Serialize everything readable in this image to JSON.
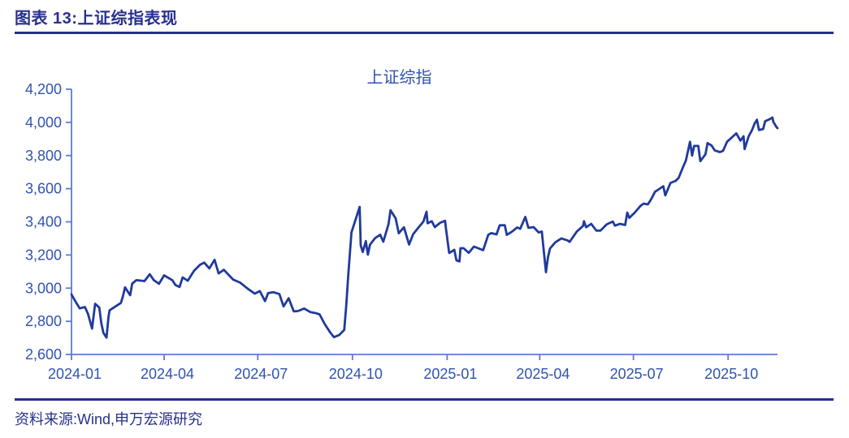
{
  "header": {
    "caption": "图表 13:上证综指表现"
  },
  "footer": {
    "source": "资料来源:Wind,申万宏源研究"
  },
  "chart_data": {
    "type": "line",
    "title": "上证综指",
    "series_name": "上证综指",
    "xlabel": "",
    "ylabel": "",
    "ylim": [
      2600,
      4200
    ],
    "x_range": [
      "2024-01-02",
      "2025-11-18"
    ],
    "grid": false,
    "legend": "none",
    "colors": {
      "heading": "#27308D",
      "line": "#203A9B",
      "axis": "#5B7CD2",
      "tick_label": "#3152B0",
      "title_text": "#3152B0"
    },
    "y_ticks": [
      {
        "value": 4200,
        "label": "4,200"
      },
      {
        "value": 4000,
        "label": "4,000"
      },
      {
        "value": 3800,
        "label": "3,800"
      },
      {
        "value": 3600,
        "label": "3,600"
      },
      {
        "value": 3400,
        "label": "3,400"
      },
      {
        "value": 3200,
        "label": "3,200"
      },
      {
        "value": 3000,
        "label": "3,000"
      },
      {
        "value": 2800,
        "label": "2,800"
      },
      {
        "value": 2600,
        "label": "2,600"
      }
    ],
    "x_ticks": [
      {
        "date": "2024-01-01",
        "label": "2024-01"
      },
      {
        "date": "2024-04-01",
        "label": "2024-04"
      },
      {
        "date": "2024-07-01",
        "label": "2024-07"
      },
      {
        "date": "2024-10-01",
        "label": "2024-10"
      },
      {
        "date": "2025-01-01",
        "label": "2025-01"
      },
      {
        "date": "2025-04-01",
        "label": "2025-04"
      },
      {
        "date": "2025-07-01",
        "label": "2025-07"
      },
      {
        "date": "2025-10-01",
        "label": "2025-10"
      }
    ],
    "points": [
      [
        "2024-01-02",
        2962
      ],
      [
        "2024-01-05",
        2929
      ],
      [
        "2024-01-10",
        2878
      ],
      [
        "2024-01-15",
        2886
      ],
      [
        "2024-01-18",
        2845
      ],
      [
        "2024-01-22",
        2756
      ],
      [
        "2024-01-25",
        2906
      ],
      [
        "2024-01-29",
        2883
      ],
      [
        "2024-01-31",
        2789
      ],
      [
        "2024-02-02",
        2730
      ],
      [
        "2024-02-05",
        2702
      ],
      [
        "2024-02-07",
        2829
      ],
      [
        "2024-02-08",
        2866
      ],
      [
        "2024-02-19",
        2911
      ],
      [
        "2024-02-21",
        2951
      ],
      [
        "2024-02-23",
        3005
      ],
      [
        "2024-02-28",
        2957
      ],
      [
        "2024-03-01",
        3027
      ],
      [
        "2024-03-05",
        3048
      ],
      [
        "2024-03-08",
        3046
      ],
      [
        "2024-03-13",
        3043
      ],
      [
        "2024-03-18",
        3084
      ],
      [
        "2024-03-22",
        3048
      ],
      [
        "2024-03-27",
        3026
      ],
      [
        "2024-04-01",
        3077
      ],
      [
        "2024-04-09",
        3048
      ],
      [
        "2024-04-12",
        3019
      ],
      [
        "2024-04-16",
        3007
      ],
      [
        "2024-04-19",
        3065
      ],
      [
        "2024-04-24",
        3045
      ],
      [
        "2024-04-30",
        3104
      ],
      [
        "2024-05-06",
        3141
      ],
      [
        "2024-05-10",
        3154
      ],
      [
        "2024-05-15",
        3119
      ],
      [
        "2024-05-20",
        3171
      ],
      [
        "2024-05-24",
        3089
      ],
      [
        "2024-05-29",
        3111
      ],
      [
        "2024-06-03",
        3078
      ],
      [
        "2024-06-07",
        3052
      ],
      [
        "2024-06-14",
        3033
      ],
      [
        "2024-06-21",
        2998
      ],
      [
        "2024-06-28",
        2967
      ],
      [
        "2024-07-03",
        2982
      ],
      [
        "2024-07-08",
        2922
      ],
      [
        "2024-07-11",
        2970
      ],
      [
        "2024-07-16",
        2976
      ],
      [
        "2024-07-22",
        2964
      ],
      [
        "2024-07-26",
        2890
      ],
      [
        "2024-07-31",
        2939
      ],
      [
        "2024-08-05",
        2860
      ],
      [
        "2024-08-09",
        2862
      ],
      [
        "2024-08-15",
        2877
      ],
      [
        "2024-08-21",
        2856
      ],
      [
        "2024-08-27",
        2848
      ],
      [
        "2024-08-30",
        2842
      ],
      [
        "2024-09-04",
        2784
      ],
      [
        "2024-09-09",
        2736
      ],
      [
        "2024-09-13",
        2704
      ],
      [
        "2024-09-18",
        2717
      ],
      [
        "2024-09-23",
        2748
      ],
      [
        "2024-09-25",
        2896
      ],
      [
        "2024-09-27",
        3088
      ],
      [
        "2024-09-30",
        3336
      ],
      [
        "2024-10-08",
        3490
      ],
      [
        "2024-10-09",
        3258
      ],
      [
        "2024-10-11",
        3218
      ],
      [
        "2024-10-14",
        3284
      ],
      [
        "2024-10-16",
        3202
      ],
      [
        "2024-10-18",
        3262
      ],
      [
        "2024-10-23",
        3302
      ],
      [
        "2024-10-28",
        3322
      ],
      [
        "2024-10-31",
        3280
      ],
      [
        "2024-11-05",
        3386
      ],
      [
        "2024-11-07",
        3470
      ],
      [
        "2024-11-12",
        3421
      ],
      [
        "2024-11-15",
        3331
      ],
      [
        "2024-11-20",
        3367
      ],
      [
        "2024-11-25",
        3263
      ],
      [
        "2024-11-29",
        3326
      ],
      [
        "2024-12-04",
        3365
      ],
      [
        "2024-12-09",
        3402
      ],
      [
        "2024-12-12",
        3461
      ],
      [
        "2024-12-13",
        3391
      ],
      [
        "2024-12-17",
        3404
      ],
      [
        "2024-12-20",
        3368
      ],
      [
        "2024-12-25",
        3393
      ],
      [
        "2024-12-30",
        3407
      ],
      [
        "2024-12-31",
        3352
      ],
      [
        "2025-01-03",
        3212
      ],
      [
        "2025-01-08",
        3231
      ],
      [
        "2025-01-10",
        3168
      ],
      [
        "2025-01-13",
        3161
      ],
      [
        "2025-01-14",
        3241
      ],
      [
        "2025-01-17",
        3241
      ],
      [
        "2025-01-22",
        3213
      ],
      [
        "2025-01-27",
        3251
      ],
      [
        "2025-02-05",
        3229
      ],
      [
        "2025-02-10",
        3322
      ],
      [
        "2025-02-13",
        3332
      ],
      [
        "2025-02-18",
        3324
      ],
      [
        "2025-02-21",
        3379
      ],
      [
        "2025-02-26",
        3380
      ],
      [
        "2025-02-28",
        3321
      ],
      [
        "2025-03-05",
        3341
      ],
      [
        "2025-03-10",
        3366
      ],
      [
        "2025-03-13",
        3358
      ],
      [
        "2025-03-18",
        3430
      ],
      [
        "2025-03-21",
        3364
      ],
      [
        "2025-03-26",
        3368
      ],
      [
        "2025-03-31",
        3336
      ],
      [
        "2025-04-03",
        3342
      ],
      [
        "2025-04-07",
        3096
      ],
      [
        "2025-04-09",
        3187
      ],
      [
        "2025-04-11",
        3239
      ],
      [
        "2025-04-16",
        3276
      ],
      [
        "2025-04-22",
        3300
      ],
      [
        "2025-04-28",
        3288
      ],
      [
        "2025-04-30",
        3279
      ],
      [
        "2025-05-07",
        3342
      ],
      [
        "2025-05-13",
        3375
      ],
      [
        "2025-05-14",
        3404
      ],
      [
        "2025-05-16",
        3367
      ],
      [
        "2025-05-21",
        3388
      ],
      [
        "2025-05-26",
        3347
      ],
      [
        "2025-05-30",
        3347
      ],
      [
        "2025-06-05",
        3385
      ],
      [
        "2025-06-11",
        3402
      ],
      [
        "2025-06-13",
        3377
      ],
      [
        "2025-06-18",
        3388
      ],
      [
        "2025-06-23",
        3381
      ],
      [
        "2025-06-25",
        3456
      ],
      [
        "2025-06-27",
        3424
      ],
      [
        "2025-07-02",
        3454
      ],
      [
        "2025-07-08",
        3497
      ],
      [
        "2025-07-11",
        3510
      ],
      [
        "2025-07-15",
        3505
      ],
      [
        "2025-07-18",
        3534
      ],
      [
        "2025-07-22",
        3582
      ],
      [
        "2025-07-25",
        3594
      ],
      [
        "2025-07-30",
        3615
      ],
      [
        "2025-08-01",
        3560
      ],
      [
        "2025-08-06",
        3635
      ],
      [
        "2025-08-11",
        3647
      ],
      [
        "2025-08-14",
        3666
      ],
      [
        "2025-08-18",
        3728
      ],
      [
        "2025-08-21",
        3771
      ],
      [
        "2025-08-25",
        3883
      ],
      [
        "2025-08-27",
        3800
      ],
      [
        "2025-08-29",
        3858
      ],
      [
        "2025-09-02",
        3858
      ],
      [
        "2025-09-04",
        3766
      ],
      [
        "2025-09-09",
        3807
      ],
      [
        "2025-09-11",
        3875
      ],
      [
        "2025-09-15",
        3860
      ],
      [
        "2025-09-18",
        3831
      ],
      [
        "2025-09-23",
        3821
      ],
      [
        "2025-09-26",
        3828
      ],
      [
        "2025-09-30",
        3883
      ],
      [
        "2025-10-09",
        3934
      ],
      [
        "2025-10-13",
        3890
      ],
      [
        "2025-10-16",
        3916
      ],
      [
        "2025-10-17",
        3839
      ],
      [
        "2025-10-21",
        3916
      ],
      [
        "2025-10-24",
        3950
      ],
      [
        "2025-10-27",
        3996
      ],
      [
        "2025-10-29",
        4016
      ],
      [
        "2025-10-31",
        3954
      ],
      [
        "2025-11-04",
        3960
      ],
      [
        "2025-11-06",
        4007
      ],
      [
        "2025-11-10",
        4018
      ],
      [
        "2025-11-13",
        4029
      ],
      [
        "2025-11-14",
        4003
      ],
      [
        "2025-11-17",
        3972
      ],
      [
        "2025-11-18",
        3965
      ]
    ]
  }
}
